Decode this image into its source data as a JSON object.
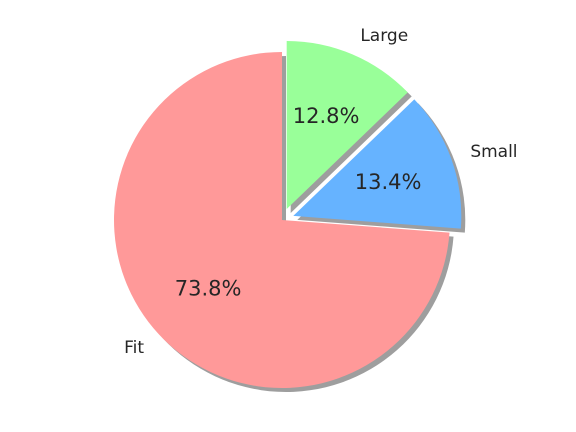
{
  "chart_data": {
    "type": "pie",
    "title": "",
    "slices": [
      {
        "label": "Fit",
        "value": 73.8,
        "pct_text": "73.8%",
        "color": "#ff9999",
        "exploded": false
      },
      {
        "label": "Small",
        "value": 13.4,
        "pct_text": "13.4%",
        "color": "#66b3ff",
        "exploded": true
      },
      {
        "label": "Large",
        "value": 12.8,
        "pct_text": "12.8%",
        "color": "#99ff99",
        "exploded": true
      }
    ],
    "start_angle_deg": 90,
    "direction": "counterclockwise",
    "shadow": true,
    "legend": "none"
  }
}
